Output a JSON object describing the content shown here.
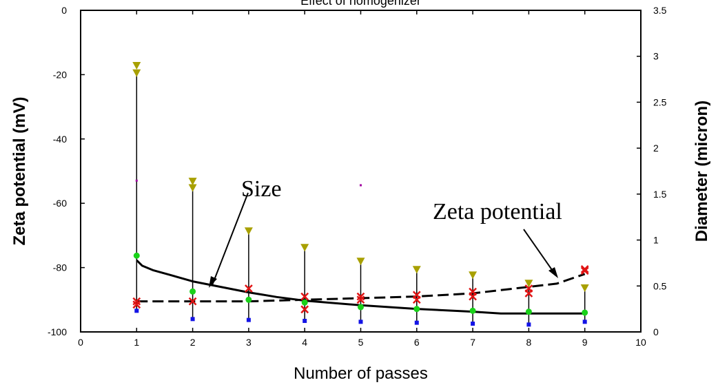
{
  "chart_data": {
    "type": "scatter",
    "title": "Effect of homogenizer",
    "xlabel": "Number of passes",
    "ylabel": "Zeta potential (mV)",
    "y2label": "Diameter (micron)",
    "xlim": [
      0,
      10
    ],
    "ylim": [
      -100,
      0
    ],
    "y2lim": [
      0,
      3.5
    ],
    "x_ticks": [
      "0",
      "1",
      "2",
      "3",
      "4",
      "5",
      "6",
      "7",
      "8",
      "9",
      "10"
    ],
    "y_ticks": [
      "0",
      "-20",
      "-40",
      "-60",
      "-80",
      "-100"
    ],
    "y2_ticks": [
      "3.5",
      "3",
      "2.5",
      "2",
      "1.5",
      "1",
      "0.5",
      "0"
    ],
    "grid": false,
    "legend": "none",
    "annotations": [
      {
        "text": "Size"
      },
      {
        "text": "Zeta potential"
      }
    ],
    "series": [
      {
        "axis": "right",
        "marker": "triangle-down",
        "color": "#a8a000",
        "x": [
          1,
          1,
          2,
          2,
          3,
          4,
          5,
          6,
          7,
          8,
          9
        ],
        "values": [
          2.9,
          2.82,
          1.64,
          1.57,
          1.1,
          0.92,
          0.77,
          0.68,
          0.62,
          0.53,
          0.48
        ]
      },
      {
        "axis": "right",
        "marker": "circle",
        "color": "#19d219",
        "x": [
          1,
          2,
          3,
          4,
          5,
          6,
          7,
          8,
          9
        ],
        "values": [
          0.83,
          0.44,
          0.35,
          0.32,
          0.27,
          0.25,
          0.23,
          0.22,
          0.21
        ]
      },
      {
        "axis": "right",
        "marker": "square",
        "color": "#1414e6",
        "x": [
          1,
          2,
          3,
          4,
          5,
          6,
          7,
          8,
          9
        ],
        "values": [
          0.23,
          0.14,
          0.13,
          0.12,
          0.11,
          0.1,
          0.09,
          0.08,
          0.11
        ]
      },
      {
        "axis": "left",
        "marker": "x",
        "color": "#e01414",
        "x": [
          1,
          1,
          2,
          3,
          4,
          4,
          5,
          5,
          6,
          6,
          7,
          7,
          8,
          8,
          9,
          9
        ],
        "values": [
          -90.5,
          -91.5,
          -90.5,
          -86.5,
          -89,
          -93,
          -89,
          -90,
          -88.5,
          -90,
          -87.5,
          -89,
          -86.5,
          -88,
          -80.5,
          -81
        ]
      },
      {
        "axis": "right",
        "marker": "dash",
        "color": "#a000a0",
        "x": [
          1,
          5
        ],
        "values": [
          1.65,
          1.6
        ]
      },
      {
        "axis": "right",
        "role": "range",
        "color": "#000000",
        "x": [
          1,
          2,
          3,
          4,
          5,
          6,
          7,
          8,
          9
        ],
        "low": [
          0.23,
          0.14,
          0.13,
          0.12,
          0.11,
          0.1,
          0.09,
          0.08,
          0.11
        ],
        "high": [
          2.85,
          1.6,
          1.08,
          0.9,
          0.75,
          0.66,
          0.6,
          0.52,
          0.5
        ]
      },
      {
        "axis": "right",
        "style": "solid",
        "color": "#000000",
        "label": "Size",
        "x": [
          1,
          1.1,
          1.3,
          1.6,
          2,
          2.5,
          3,
          3.5,
          4,
          5,
          6,
          7,
          7.5,
          8,
          9
        ],
        "values": [
          0.78,
          0.72,
          0.67,
          0.62,
          0.55,
          0.49,
          0.43,
          0.38,
          0.34,
          0.29,
          0.25,
          0.22,
          0.2,
          0.2,
          0.2
        ]
      },
      {
        "axis": "left",
        "style": "dashed",
        "color": "#000000",
        "label": "Zeta potential",
        "x": [
          1,
          2,
          3,
          4,
          5,
          6,
          7,
          8,
          8.5,
          9
        ],
        "values": [
          -90.5,
          -90.5,
          -90.5,
          -90,
          -89.5,
          -89,
          -88,
          -86,
          -85,
          -82
        ]
      }
    ]
  }
}
